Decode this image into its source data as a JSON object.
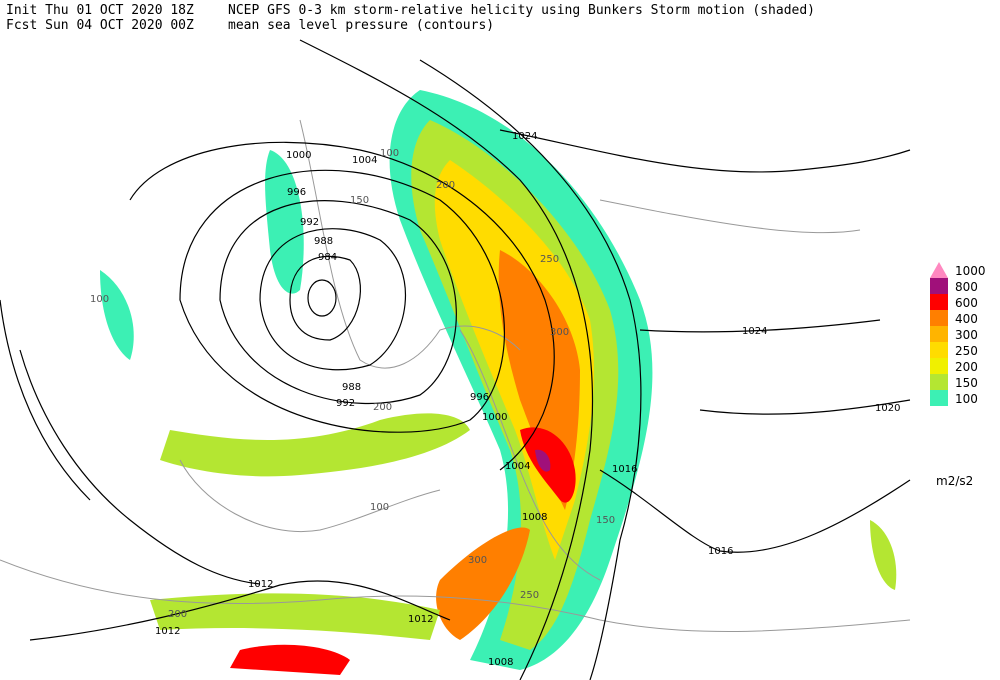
{
  "header": {
    "init": "Init  Thu 01 OCT 2020 18Z",
    "forecast": "Fcst Sun 04 OCT 2020 00Z",
    "title": "NCEP GFS 0-3 km storm-relative helicity using Bunkers Storm motion (shaded)",
    "subtitle": "mean sea level pressure (contours)"
  },
  "legend": {
    "units": "m2/s2",
    "levels": [
      {
        "label": "1000",
        "color": "#ff88c0"
      },
      {
        "label": "800",
        "color": "#a0107a"
      },
      {
        "label": "600",
        "color": "#ff0000"
      },
      {
        "label": "400",
        "color": "#ff7f00"
      },
      {
        "label": "300",
        "color": "#ffb400"
      },
      {
        "label": "250",
        "color": "#ffdc00"
      },
      {
        "label": "200",
        "color": "#f0f000"
      },
      {
        "label": "150",
        "color": "#b4e632"
      },
      {
        "label": "100",
        "color": "#3cf0b4"
      }
    ]
  },
  "contour_labels": [
    "1024",
    "1004",
    "1000",
    "996",
    "992",
    "988",
    "984",
    "988",
    "992",
    "996",
    "1000",
    "1024",
    "1020",
    "1016",
    "1016",
    "1012",
    "1012",
    "1012",
    "1008",
    "1008",
    "1004"
  ],
  "helicity_labels": [
    "100",
    "150",
    "200",
    "250",
    "300",
    "100",
    "150",
    "200",
    "250",
    "300",
    "100",
    "200"
  ]
}
